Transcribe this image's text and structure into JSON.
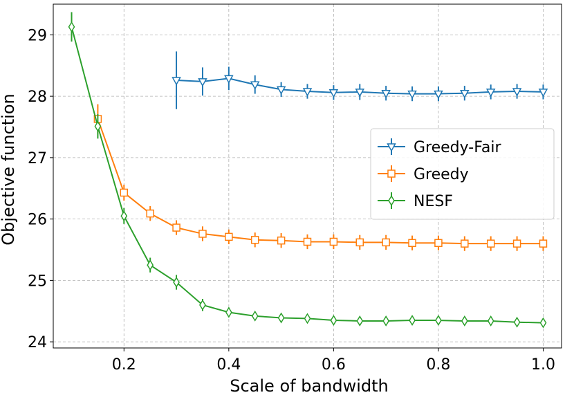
{
  "chart_data": {
    "type": "line",
    "title": "",
    "xlabel": "Scale of bandwidth",
    "ylabel": "Objective function",
    "xlim": [
      0.065,
      1.035
    ],
    "ylim": [
      23.9,
      29.5
    ],
    "xticks": [
      0.2,
      0.4,
      0.6,
      0.8,
      1.0
    ],
    "xtick_labels": [
      "0.2",
      "0.4",
      "0.6",
      "0.8",
      "1.0"
    ],
    "yticks": [
      24,
      25,
      26,
      27,
      28,
      29
    ],
    "ytick_labels": [
      "24",
      "25",
      "26",
      "27",
      "28",
      "29"
    ],
    "grid": true,
    "legend_position": "center-right",
    "series": [
      {
        "name": "Greedy-Fair",
        "color": "#1f77b4",
        "marker": "triangle-down",
        "x": [
          0.3,
          0.35,
          0.4,
          0.45,
          0.5,
          0.55,
          0.6,
          0.65,
          0.7,
          0.75,
          0.8,
          0.85,
          0.9,
          0.95,
          1.0
        ],
        "values": [
          28.26,
          28.24,
          28.29,
          28.19,
          28.11,
          28.08,
          28.06,
          28.07,
          28.05,
          28.04,
          28.04,
          28.05,
          28.07,
          28.08,
          28.07
        ],
        "errors": [
          0.47,
          0.23,
          0.19,
          0.15,
          0.12,
          0.12,
          0.12,
          0.13,
          0.12,
          0.12,
          0.12,
          0.12,
          0.12,
          0.12,
          0.12
        ]
      },
      {
        "name": "Greedy",
        "color": "#ff7f0e",
        "marker": "square",
        "x": [
          0.15,
          0.2,
          0.25,
          0.3,
          0.35,
          0.4,
          0.45,
          0.5,
          0.55,
          0.6,
          0.65,
          0.7,
          0.75,
          0.8,
          0.85,
          0.9,
          0.95,
          1.0
        ],
        "values": [
          27.63,
          26.43,
          26.09,
          25.86,
          25.76,
          25.71,
          25.66,
          25.65,
          25.63,
          25.63,
          25.62,
          25.62,
          25.61,
          25.61,
          25.6,
          25.6,
          25.6,
          25.6
        ],
        "errors": [
          0.24,
          0.13,
          0.12,
          0.12,
          0.12,
          0.12,
          0.12,
          0.12,
          0.12,
          0.12,
          0.12,
          0.12,
          0.12,
          0.12,
          0.12,
          0.12,
          0.12,
          0.12
        ]
      },
      {
        "name": "NESF",
        "color": "#2ca02c",
        "marker": "thin-diamond",
        "x": [
          0.1,
          0.15,
          0.2,
          0.25,
          0.3,
          0.35,
          0.4,
          0.45,
          0.5,
          0.55,
          0.6,
          0.65,
          0.7,
          0.75,
          0.8,
          0.85,
          0.9,
          0.95,
          1.0
        ],
        "values": [
          29.13,
          27.51,
          26.05,
          25.25,
          24.97,
          24.6,
          24.48,
          24.42,
          24.39,
          24.38,
          24.35,
          24.34,
          24.34,
          24.35,
          24.35,
          24.34,
          24.34,
          24.32,
          24.31
        ],
        "errors": [
          0.24,
          0.2,
          0.13,
          0.12,
          0.12,
          0.1,
          0.08,
          0.07,
          0.06,
          0.06,
          0.06,
          0.06,
          0.06,
          0.06,
          0.06,
          0.06,
          0.06,
          0.06,
          0.05
        ]
      }
    ]
  }
}
